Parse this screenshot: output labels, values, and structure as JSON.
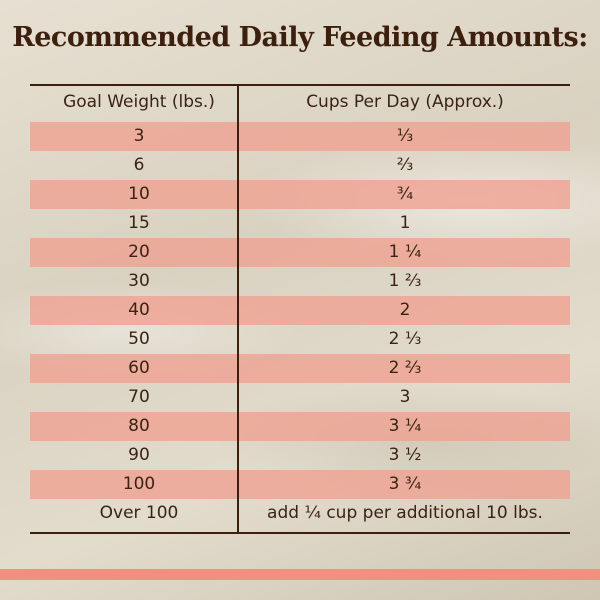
{
  "title": "Recommended Daily Feeding Amounts:",
  "table": {
    "headers": [
      "Goal Weight (lbs.)",
      "Cups Per Day (Approx.)"
    ],
    "rows": [
      [
        "3",
        "⅓"
      ],
      [
        "6",
        "⅔"
      ],
      [
        "10",
        "¾"
      ],
      [
        "15",
        "1"
      ],
      [
        "20",
        "1 ¼"
      ],
      [
        "30",
        "1 ⅔"
      ],
      [
        "40",
        "2"
      ],
      [
        "50",
        "2 ⅓"
      ],
      [
        "60",
        "2 ⅔"
      ],
      [
        "70",
        "3"
      ],
      [
        "80",
        "3 ¼"
      ],
      [
        "90",
        "3 ½"
      ],
      [
        "100",
        "3 ¾"
      ],
      [
        "Over 100",
        "add ¼ cup per additional 10 lbs."
      ]
    ]
  }
}
